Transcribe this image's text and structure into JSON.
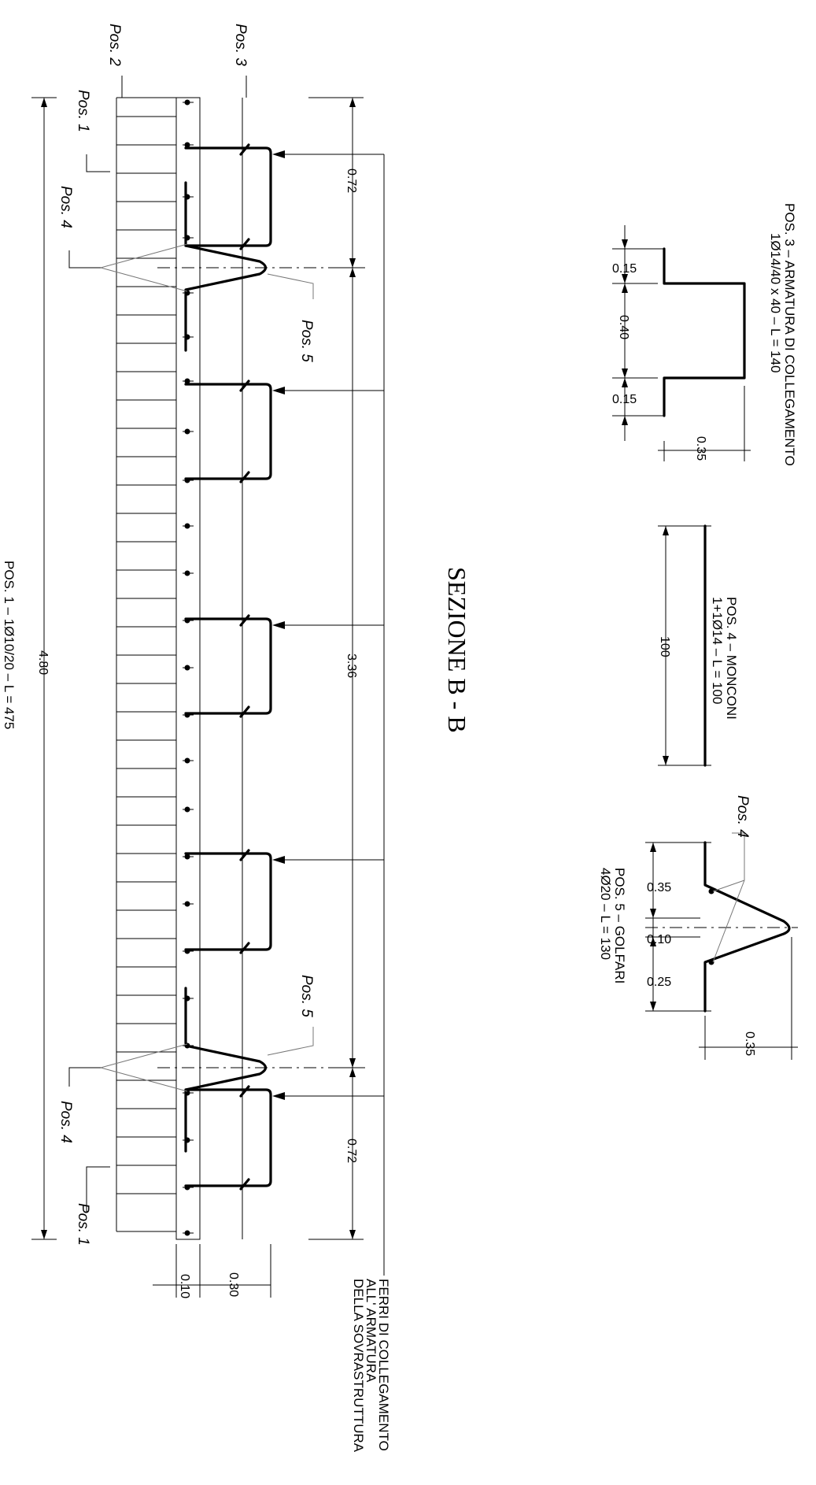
{
  "title": "SEZIONE B - B",
  "pos_labels": {
    "pos1": "Pos. 1",
    "pos2": "Pos. 2",
    "pos3": "Pos. 3",
    "pos4": "Pos. 4",
    "pos5": "Pos. 5"
  },
  "schedules": {
    "pos1": "POS. 1 – 1Ø10/20 – L = 475",
    "pos3_line1": "POS. 3 – ARMATURA DI COLLEGAMENTO",
    "pos3_line2": "1Ø14/40 x 40 – L = 140",
    "pos4_line1": "POS. 4 – MONCONI",
    "pos4_line2": "1+1Ø14 – L = 100",
    "pos5_line1": "POS. 5 – GOLFARI",
    "pos5_line2": "4Ø20 – L = 130"
  },
  "dimensions": {
    "total_length": "4.80",
    "end_spacing": "0.72",
    "middle_spacing": "3.36",
    "slab_thickness": "0.10",
    "connection_height": "0.30",
    "pos3_leg": "0.15",
    "pos3_mid": "0.40",
    "pos3_height": "0.35",
    "pos4_length": "100",
    "pos5_upper": "0.35",
    "pos5_mid": "0.10",
    "pos5_lower": "0.25",
    "pos5_height": "0.35"
  },
  "note": {
    "line1": "FERRI DI COLLEGAMENTO",
    "line2": "ALL' ARMATURA",
    "line3": "DELLA SOVRASTRUTTURA"
  }
}
